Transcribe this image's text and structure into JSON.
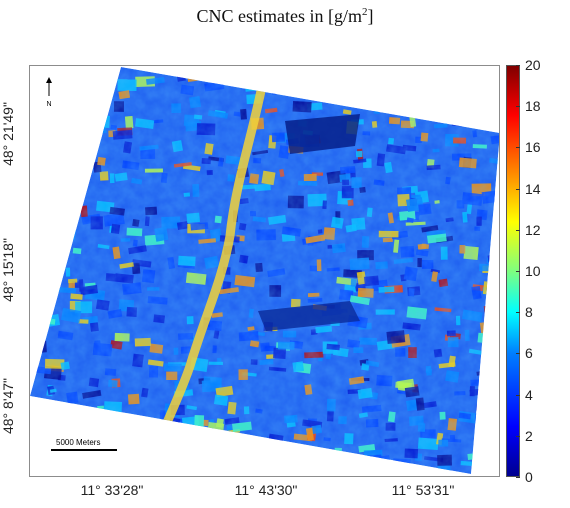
{
  "title": "CNC estimates in [g/m",
  "title_sup": "2",
  "title_end": "]",
  "north_label": "N",
  "scale_bar_label": "5000 Meters",
  "y_axis_ticks": [
    {
      "label": "48° 21'49\""
    },
    {
      "label": "48° 15'18\""
    },
    {
      "label": "48° 8'47\""
    }
  ],
  "x_axis_ticks": [
    {
      "label": "11° 33'28\""
    },
    {
      "label": "11° 43'30\""
    },
    {
      "label": "11° 53'31\""
    }
  ],
  "colorbar": {
    "min": 0,
    "max": 20,
    "ticks": [
      "0",
      "2",
      "4",
      "6",
      "8",
      "10",
      "12",
      "14",
      "16",
      "18",
      "20"
    ],
    "colormap": "jet"
  },
  "colors": {
    "low": "#00008f",
    "mid": "#00ffff",
    "high": "#800000",
    "frame": "#8c8c8c"
  }
}
